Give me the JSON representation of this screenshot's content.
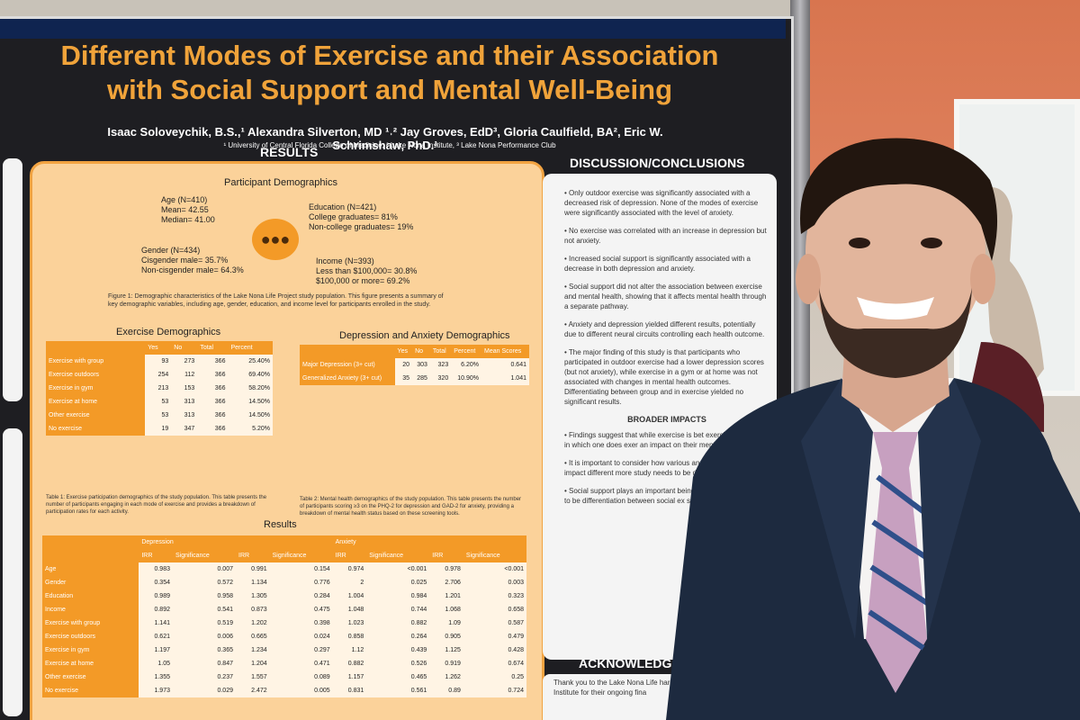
{
  "poster": {
    "title": "Different Modes of Exercise and their Association with Social Support and Mental Well-Being",
    "authors": "Isaac Soloveychik, B.S.,¹ Alexandra Silverton, MD ¹˒² Jay Groves, EdD³, Gloria Caulfield, BA², Eric W. Schrimshaw, PhD.¹",
    "affiliations": "¹ University of Central Florida College of Medicine, ² Lake Nona Institute, ³ Lake Nona Performance Club",
    "results_heading": "RESULTS",
    "demographics": {
      "title": "Participant Demographics",
      "age": "Age (N=410)",
      "age_mean": "Mean= 42.55",
      "age_median": "Median= 41.00",
      "education": "Education (N=421)",
      "edu_college": "College graduates= 81%",
      "edu_noncollege": "Non-college graduates= 19%",
      "gender": "Gender (N=434)",
      "gender_cis": "Cisgender male= 35.7%",
      "gender_noncis": "Non-cisgender male= 64.3%",
      "income": "Income (N=393)",
      "income_low": "Less than $100,000= 30.8%",
      "income_high": "$100,000 or more= 69.2%",
      "figure_caption": "Figure 1: Demographic characteristics of the Lake Nona Life Project study population. This figure presents a summary of key demographic variables, including age, gender, education, and income level for participants enrolled in the study."
    },
    "exercise_table": {
      "title": "Exercise Demographics",
      "headers": [
        "",
        "Yes",
        "No",
        "Total",
        "Percent"
      ],
      "rows": [
        [
          "Exercise with group",
          "93",
          "273",
          "366",
          "25.40%"
        ],
        [
          "Exercise outdoors",
          "254",
          "112",
          "366",
          "69.40%"
        ],
        [
          "Exercise in gym",
          "213",
          "153",
          "366",
          "58.20%"
        ],
        [
          "Exercise at home",
          "53",
          "313",
          "366",
          "14.50%"
        ],
        [
          "Other exercise",
          "53",
          "313",
          "366",
          "14.50%"
        ],
        [
          "No exercise",
          "19",
          "347",
          "366",
          "5.20%"
        ]
      ],
      "caption": "Table 1: Exercise participation demographics of the study population. This table presents the number of participants engaging in each mode of exercise and provides a breakdown of participation rates for each activity."
    },
    "depression_table": {
      "title": "Depression and Anxiety Demographics",
      "headers": [
        "",
        "Yes",
        "No",
        "Total",
        "Percent",
        "Mean Scores"
      ],
      "rows": [
        [
          "Major Depression (3+ cut)",
          "20",
          "303",
          "323",
          "6.20%",
          "0.641"
        ],
        [
          "Generalized Anxiety (3+ cut)",
          "35",
          "285",
          "320",
          "10.90%",
          "1.041"
        ]
      ],
      "caption": "Table 2: Mental health demographics of the study population. This table presents the number of participants scoring ≥3 on the PHQ-2 for depression and GAD-2 for anxiety, providing a breakdown of mental health status based on these screening tools."
    },
    "results_table": {
      "title": "Results",
      "group_headers": [
        "Depression",
        "Anxiety"
      ],
      "headers": [
        "",
        "IRR",
        "Significance",
        "IRR",
        "Significance",
        "IRR",
        "Significance",
        "IRR",
        "Significance"
      ],
      "rows": [
        [
          "Age",
          "0.983",
          "0.007",
          "0.991",
          "0.154",
          "0.974",
          "<0.001",
          "0.978",
          "<0.001"
        ],
        [
          "Gender",
          "0.354",
          "0.572",
          "1.134",
          "0.776",
          "2",
          "0.025",
          "2.706",
          "0.003"
        ],
        [
          "Education",
          "0.989",
          "0.958",
          "1.305",
          "0.284",
          "1.004",
          "0.984",
          "1.201",
          "0.323"
        ],
        [
          "Income",
          "0.892",
          "0.541",
          "0.873",
          "0.475",
          "1.048",
          "0.744",
          "1.068",
          "0.658"
        ],
        [
          "Exercise with group",
          "1.141",
          "0.519",
          "1.202",
          "0.398",
          "1.023",
          "0.882",
          "1.09",
          "0.587"
        ],
        [
          "Exercise outdoors",
          "0.621",
          "0.006",
          "0.665",
          "0.024",
          "0.858",
          "0.264",
          "0.905",
          "0.479"
        ],
        [
          "Exercise in gym",
          "1.197",
          "0.365",
          "1.234",
          "0.297",
          "1.12",
          "0.439",
          "1.125",
          "0.428"
        ],
        [
          "Exercise at home",
          "1.05",
          "0.847",
          "1.204",
          "0.471",
          "0.882",
          "0.526",
          "0.919",
          "0.674"
        ],
        [
          "Other exercise",
          "1.355",
          "0.237",
          "1.557",
          "0.089",
          "1.157",
          "0.465",
          "1.262",
          "0.25"
        ],
        [
          "No exercise",
          "1.973",
          "0.029",
          "2.472",
          "0.005",
          "0.831",
          "0.561",
          "0.89",
          "0.724"
        ]
      ]
    },
    "discussion": {
      "heading": "DISCUSSION/CONCLUSIONS",
      "points": [
        "Only outdoor exercise was significantly associated with a decreased risk of depression. None of the modes of exercise were significantly associated with the level of anxiety.",
        "No exercise was correlated with an increase in depression but not anxiety.",
        "Increased social support is significantly associated with a decrease in both depression and anxiety.",
        "Social support did not alter the association between exercise and mental health, showing that it affects mental health through a separate pathway.",
        "Anxiety and depression yielded different results, potentially due to different neural circuits controlling each health outcome.",
        "The major finding of this study is that participants who participated in outdoor exercise had a lower depression scores (but not anxiety), while exercise in a gym or at home was not associated with changes in mental health outcomes. Differentiating between group and in exercise yielded no significant results."
      ],
      "broader_heading": "BROADER IMPACTS",
      "broader_points": [
        "Findings suggest that while exercise is bet exercise, the mode in which one does exer an impact on their mental well-being.",
        "It is important to consider how various and their sociability impact different more study needs to be done to diff effects.",
        "Social support plays an important being, and more work needs to be differentiation between social ex support."
      ]
    },
    "acknowledgements": {
      "heading": "ACKNOWLEDG",
      "text": "Thank you to the Lake Nona Life hard work in implementing thi Institute for their ongoing fina"
    }
  }
}
